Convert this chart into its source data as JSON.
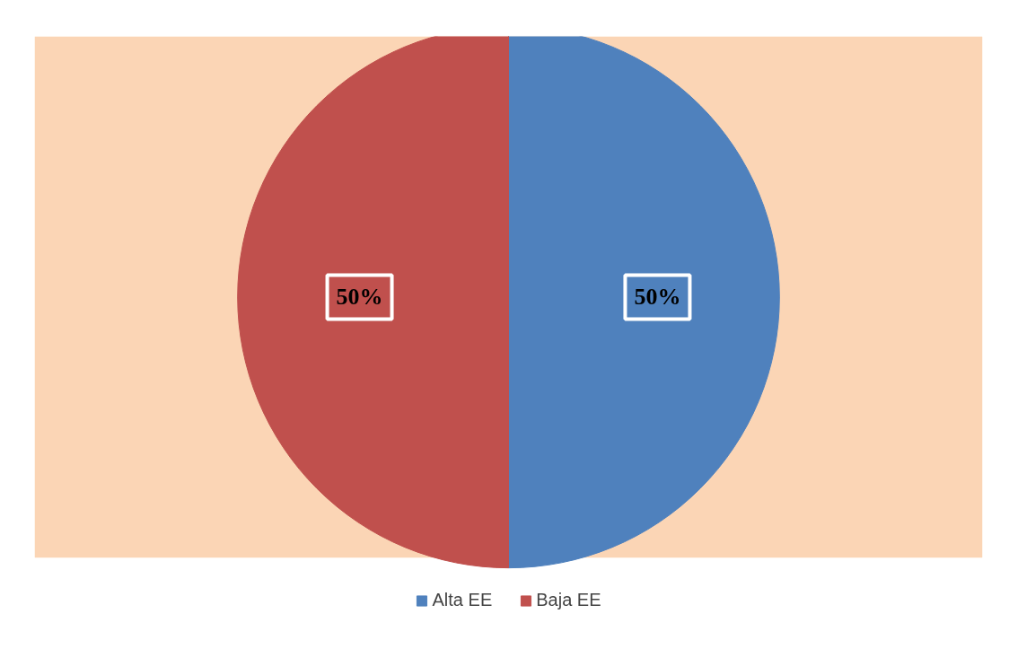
{
  "chart_data": {
    "type": "pie",
    "categories": [
      "Alta EE",
      "Baja EE"
    ],
    "values": [
      50,
      50
    ],
    "colors": [
      "#4f81bd",
      "#c0504d"
    ],
    "value_labels": [
      "50%",
      "50%"
    ],
    "legend": "bottom"
  }
}
